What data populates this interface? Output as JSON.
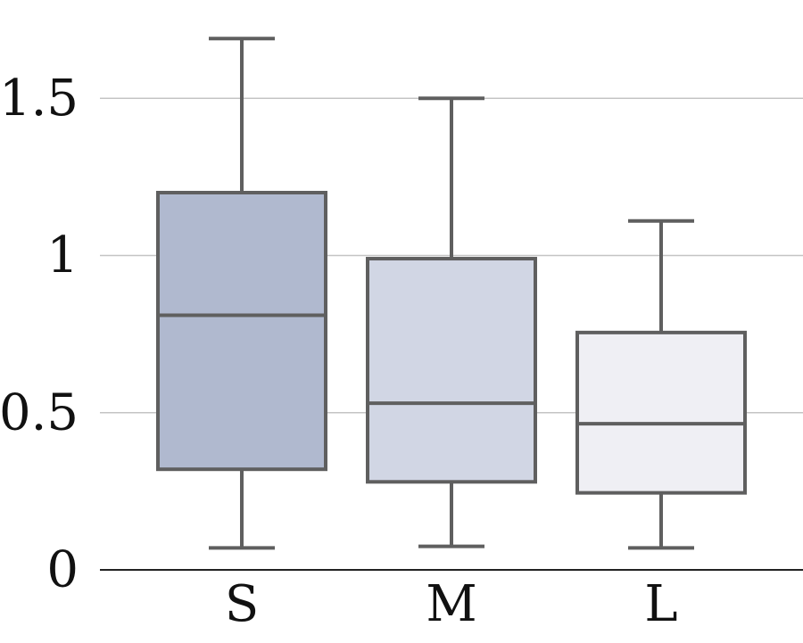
{
  "chart_data": {
    "type": "box",
    "title": "",
    "xlabel": "",
    "ylabel": "",
    "ylim": [
      0,
      1.8
    ],
    "yticks": [
      0,
      0.5,
      1,
      1.5
    ],
    "ytick_labels": [
      "0",
      "0.5",
      "1",
      "1.5"
    ],
    "grid": "horizontal",
    "categories": [
      "S",
      "M",
      "L"
    ],
    "boxes": [
      {
        "category": "S",
        "whisker_low": 0.07,
        "q1": 0.32,
        "median": 0.81,
        "q3": 1.2,
        "whisker_high": 1.69,
        "color": "#b0b9cf"
      },
      {
        "category": "M",
        "whisker_low": 0.075,
        "q1": 0.28,
        "median": 0.53,
        "q3": 0.99,
        "whisker_high": 1.5,
        "color": "#d1d6e4"
      },
      {
        "category": "L",
        "whisker_low": 0.07,
        "q1": 0.245,
        "median": 0.465,
        "q3": 0.755,
        "whisker_high": 1.11,
        "color": "#efeff4"
      }
    ]
  }
}
